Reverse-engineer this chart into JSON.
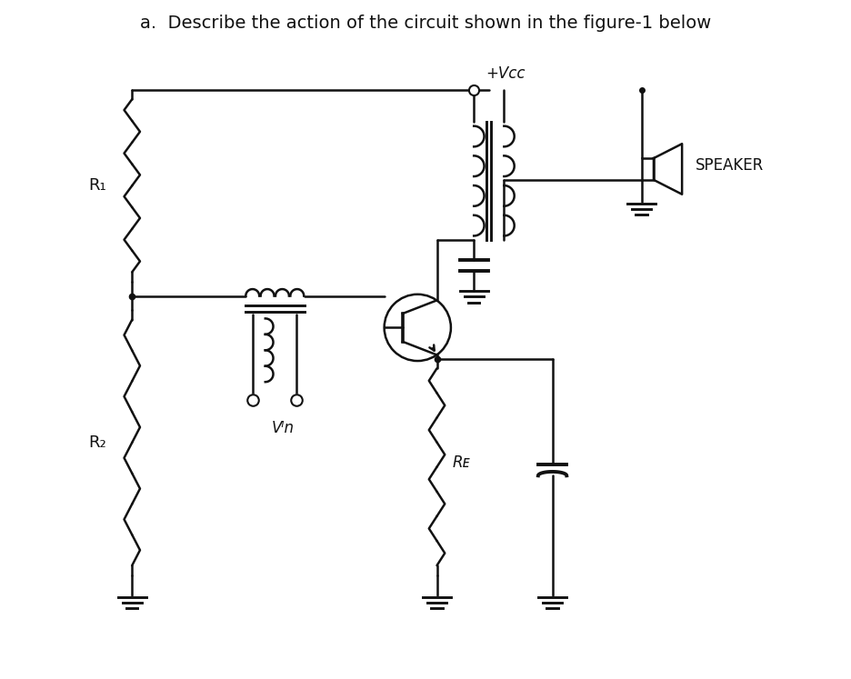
{
  "title": "a.  Describe the action of the circuit shown in the figure-1 below",
  "title_fontsize": 14,
  "bg_color": "#ffffff",
  "line_color": "#111111",
  "text_color": "#111111",
  "lw": 1.8,
  "labels": {
    "R1": "R₁",
    "R2": "R₂",
    "RE": "Rᴇ",
    "Vin": "Vᴵn",
    "Vcc": "+Vᴄᴄ",
    "SPEAKER": "SPEAKER"
  },
  "figsize": [
    9.36,
    7.47
  ],
  "dpi": 100
}
